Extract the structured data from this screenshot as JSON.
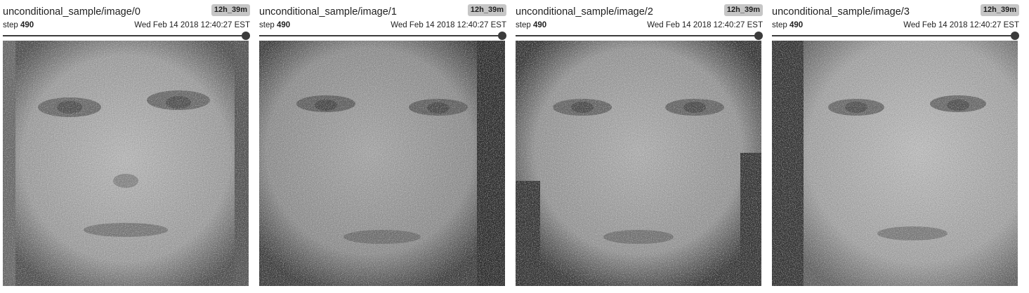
{
  "panels": [
    {
      "title": "unconditional_sample/image/0",
      "badge": "12h_39m",
      "step_label": "step",
      "step_value": "490",
      "timestamp": "Wed Feb 14 2018 12:40:27 EST",
      "slider_position": 1.0
    },
    {
      "title": "unconditional_sample/image/1",
      "badge": "12h_39m",
      "step_label": "step",
      "step_value": "490",
      "timestamp": "Wed Feb 14 2018 12:40:27 EST",
      "slider_position": 1.0
    },
    {
      "title": "unconditional_sample/image/2",
      "badge": "12h_39m",
      "step_label": "step",
      "step_value": "490",
      "timestamp": "Wed Feb 14 2018 12:40:27 EST",
      "slider_position": 1.0
    },
    {
      "title": "unconditional_sample/image/3",
      "badge": "12h_39m",
      "step_label": "step",
      "step_value": "490",
      "timestamp": "Wed Feb 14 2018 12:40:27 EST",
      "slider_position": 1.0
    }
  ],
  "colors": {
    "slider": "#3b3b3b",
    "badge_bg": "#c6c6c6",
    "text": "#212121"
  }
}
